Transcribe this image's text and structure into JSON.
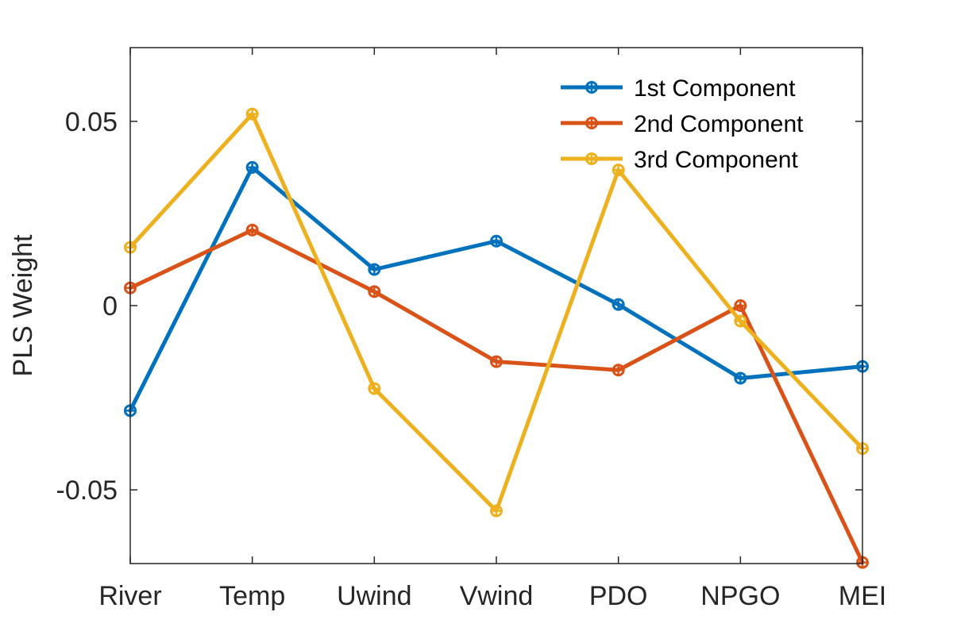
{
  "chart_data": {
    "type": "line",
    "title": "",
    "xlabel": "",
    "ylabel": "PLS Weight",
    "categories": [
      "River",
      "Temp",
      "Uwind",
      "Vwind",
      "PDO",
      "NPGO",
      "MEI"
    ],
    "ylim": [
      -0.07,
      0.07
    ],
    "yticks": [
      -0.05,
      0,
      0.05
    ],
    "ytick_labels": [
      "-0.05",
      "0",
      "0.05"
    ],
    "grid": false,
    "legend_position": "top-right",
    "marker": "circle-plus",
    "series": [
      {
        "name": "1st Component",
        "color": "#0072BD",
        "values": [
          -0.0285,
          0.0375,
          0.0098,
          0.0175,
          0.0003,
          -0.0197,
          -0.0165
        ]
      },
      {
        "name": "2nd Component",
        "color": "#D95319",
        "values": [
          0.0048,
          0.0205,
          0.0038,
          -0.0152,
          -0.0175,
          0.0,
          -0.0697
        ]
      },
      {
        "name": "3rd Component",
        "color": "#EDB120",
        "values": [
          0.0158,
          0.052,
          -0.0225,
          -0.0557,
          0.0368,
          -0.0042,
          -0.0388
        ]
      }
    ]
  }
}
